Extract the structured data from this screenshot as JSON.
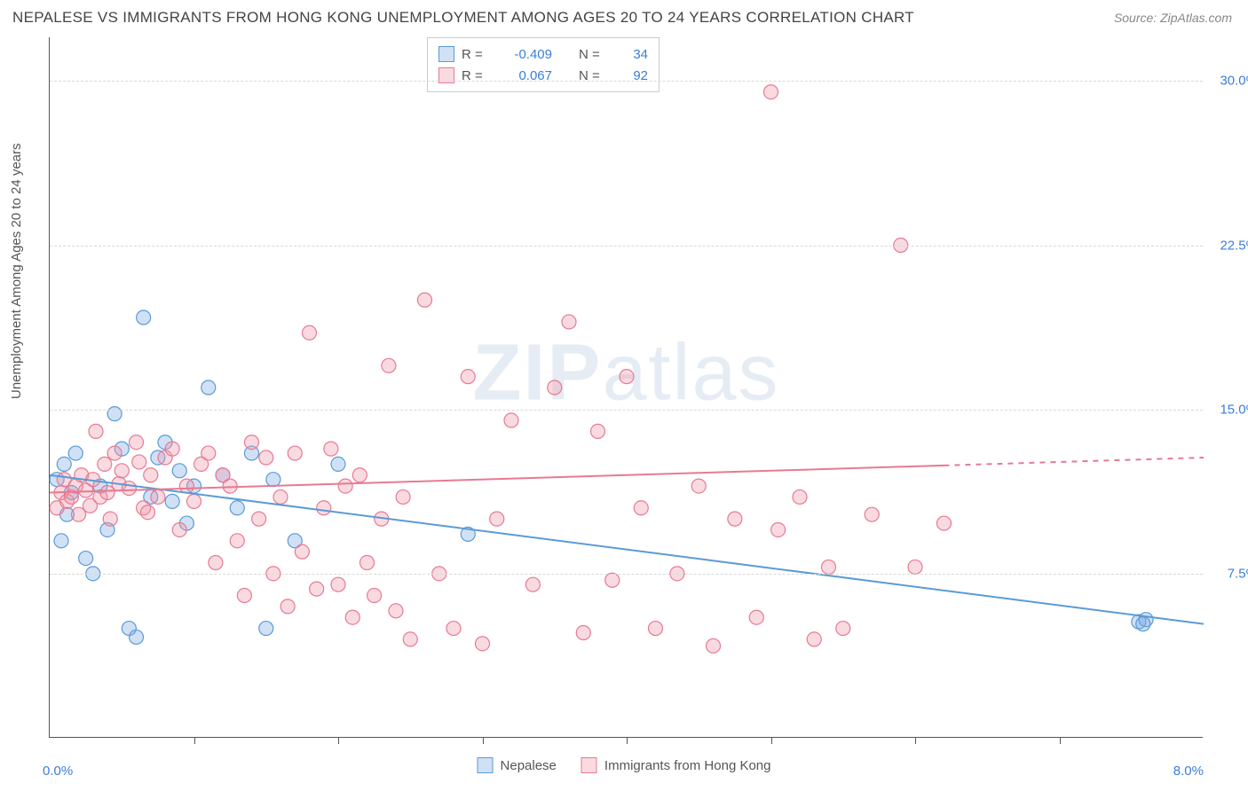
{
  "title": "NEPALESE VS IMMIGRANTS FROM HONG KONG UNEMPLOYMENT AMONG AGES 20 TO 24 YEARS CORRELATION CHART",
  "source": "Source: ZipAtlas.com",
  "y_axis_label": "Unemployment Among Ages 20 to 24 years",
  "watermark_bold": "ZIP",
  "watermark_rest": "atlas",
  "chart": {
    "type": "scatter",
    "xlim": [
      0,
      8
    ],
    "ylim": [
      0,
      32
    ],
    "x_ticks": [
      1,
      2,
      3,
      4,
      5,
      6,
      7
    ],
    "y_ticks": [
      7.5,
      15.0,
      22.5,
      30.0
    ],
    "y_tick_labels": [
      "7.5%",
      "15.0%",
      "22.5%",
      "30.0%"
    ],
    "x_min_label": "0.0%",
    "x_max_label": "8.0%",
    "background_color": "#ffffff",
    "grid_color": "#d8d8d8",
    "axis_color": "#555555",
    "marker_radius": 8,
    "marker_stroke_width": 1.2,
    "line_width": 2,
    "series": [
      {
        "name": "Nepalese",
        "fill": "rgba(120,170,230,0.35)",
        "stroke": "#5a9bd5",
        "r_value": "-0.409",
        "n_value": "34",
        "trend": {
          "y_at_x0": 12.0,
          "y_at_xmax": 5.2,
          "x_data_max": 7.6,
          "dashed_beyond": false
        },
        "points": [
          [
            0.05,
            11.8
          ],
          [
            0.08,
            9.0
          ],
          [
            0.1,
            12.5
          ],
          [
            0.12,
            10.2
          ],
          [
            0.15,
            11.2
          ],
          [
            0.18,
            13.0
          ],
          [
            0.25,
            8.2
          ],
          [
            0.3,
            7.5
          ],
          [
            0.35,
            11.5
          ],
          [
            0.4,
            9.5
          ],
          [
            0.45,
            14.8
          ],
          [
            0.5,
            13.2
          ],
          [
            0.55,
            5.0
          ],
          [
            0.6,
            4.6
          ],
          [
            0.65,
            19.2
          ],
          [
            0.7,
            11.0
          ],
          [
            0.75,
            12.8
          ],
          [
            0.8,
            13.5
          ],
          [
            0.85,
            10.8
          ],
          [
            0.9,
            12.2
          ],
          [
            0.95,
            9.8
          ],
          [
            1.0,
            11.5
          ],
          [
            1.1,
            16.0
          ],
          [
            1.2,
            12.0
          ],
          [
            1.3,
            10.5
          ],
          [
            1.4,
            13.0
          ],
          [
            1.5,
            5.0
          ],
          [
            1.55,
            11.8
          ],
          [
            1.7,
            9.0
          ],
          [
            2.0,
            12.5
          ],
          [
            2.9,
            9.3
          ],
          [
            7.55,
            5.3
          ],
          [
            7.6,
            5.4
          ],
          [
            7.58,
            5.2
          ]
        ]
      },
      {
        "name": "Immigrants from Hong Kong",
        "fill": "rgba(240,150,170,0.35)",
        "stroke": "#e77a92",
        "r_value": "0.067",
        "n_value": "92",
        "trend": {
          "y_at_x0": 11.2,
          "y_at_xmax": 12.8,
          "x_data_max": 6.2,
          "dashed_beyond": true
        },
        "points": [
          [
            0.05,
            10.5
          ],
          [
            0.08,
            11.2
          ],
          [
            0.1,
            11.8
          ],
          [
            0.12,
            10.8
          ],
          [
            0.15,
            11.0
          ],
          [
            0.18,
            11.5
          ],
          [
            0.2,
            10.2
          ],
          [
            0.22,
            12.0
          ],
          [
            0.25,
            11.3
          ],
          [
            0.28,
            10.6
          ],
          [
            0.3,
            11.8
          ],
          [
            0.32,
            14.0
          ],
          [
            0.35,
            11.0
          ],
          [
            0.38,
            12.5
          ],
          [
            0.4,
            11.2
          ],
          [
            0.42,
            10.0
          ],
          [
            0.45,
            13.0
          ],
          [
            0.48,
            11.6
          ],
          [
            0.5,
            12.2
          ],
          [
            0.6,
            13.5
          ],
          [
            0.65,
            10.5
          ],
          [
            0.7,
            12.0
          ],
          [
            0.75,
            11.0
          ],
          [
            0.8,
            12.8
          ],
          [
            0.85,
            13.2
          ],
          [
            0.9,
            9.5
          ],
          [
            0.95,
            11.5
          ],
          [
            1.0,
            10.8
          ],
          [
            1.05,
            12.5
          ],
          [
            1.1,
            13.0
          ],
          [
            1.15,
            8.0
          ],
          [
            1.2,
            12.0
          ],
          [
            1.25,
            11.5
          ],
          [
            1.3,
            9.0
          ],
          [
            1.35,
            6.5
          ],
          [
            1.4,
            13.5
          ],
          [
            1.45,
            10.0
          ],
          [
            1.5,
            12.8
          ],
          [
            1.55,
            7.5
          ],
          [
            1.6,
            11.0
          ],
          [
            1.65,
            6.0
          ],
          [
            1.7,
            13.0
          ],
          [
            1.75,
            8.5
          ],
          [
            1.8,
            18.5
          ],
          [
            1.85,
            6.8
          ],
          [
            1.9,
            10.5
          ],
          [
            1.95,
            13.2
          ],
          [
            2.0,
            7.0
          ],
          [
            2.05,
            11.5
          ],
          [
            2.1,
            5.5
          ],
          [
            2.15,
            12.0
          ],
          [
            2.2,
            8.0
          ],
          [
            2.25,
            6.5
          ],
          [
            2.3,
            10.0
          ],
          [
            2.35,
            17.0
          ],
          [
            2.4,
            5.8
          ],
          [
            2.45,
            11.0
          ],
          [
            2.5,
            4.5
          ],
          [
            2.6,
            20.0
          ],
          [
            2.7,
            7.5
          ],
          [
            2.8,
            5.0
          ],
          [
            2.9,
            16.5
          ],
          [
            3.0,
            4.3
          ],
          [
            3.1,
            10.0
          ],
          [
            3.2,
            14.5
          ],
          [
            3.35,
            7.0
          ],
          [
            3.5,
            16.0
          ],
          [
            3.6,
            19.0
          ],
          [
            3.7,
            4.8
          ],
          [
            3.8,
            14.0
          ],
          [
            3.9,
            7.2
          ],
          [
            4.0,
            16.5
          ],
          [
            4.1,
            10.5
          ],
          [
            4.2,
            5.0
          ],
          [
            4.35,
            7.5
          ],
          [
            4.5,
            11.5
          ],
          [
            4.6,
            4.2
          ],
          [
            4.75,
            10.0
          ],
          [
            4.9,
            5.5
          ],
          [
            5.0,
            29.5
          ],
          [
            5.05,
            9.5
          ],
          [
            5.2,
            11.0
          ],
          [
            5.3,
            4.5
          ],
          [
            5.4,
            7.8
          ],
          [
            5.5,
            5.0
          ],
          [
            5.7,
            10.2
          ],
          [
            5.9,
            22.5
          ],
          [
            6.0,
            7.8
          ],
          [
            6.2,
            9.8
          ],
          [
            0.55,
            11.4
          ],
          [
            0.62,
            12.6
          ],
          [
            0.68,
            10.3
          ]
        ]
      }
    ]
  },
  "legend_top": {
    "r_label": "R =",
    "n_label": "N ="
  },
  "legend_bottom": {
    "items": [
      "Nepalese",
      "Immigrants from Hong Kong"
    ]
  }
}
